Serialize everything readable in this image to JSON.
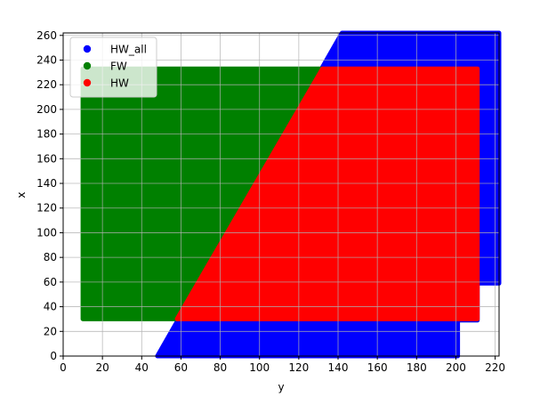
{
  "chart_data": {
    "type": "scatter",
    "title": "",
    "xlabel": "y",
    "ylabel": "x",
    "xlim": [
      0,
      222
    ],
    "ylim": [
      0,
      262
    ],
    "x_ticks": [
      0,
      20,
      40,
      60,
      80,
      100,
      120,
      140,
      160,
      180,
      200,
      220
    ],
    "y_ticks": [
      0,
      20,
      40,
      60,
      80,
      100,
      120,
      140,
      160,
      180,
      200,
      220,
      240,
      260
    ],
    "grid": true,
    "legend_position": "top-left",
    "series": [
      {
        "name": "HW_all",
        "color": "#0000ff",
        "region_polygon": [
          [
            48,
            0
          ],
          [
            201,
            0
          ],
          [
            201,
            29
          ],
          [
            211,
            29
          ],
          [
            211,
            59
          ],
          [
            222,
            59
          ],
          [
            222,
            262
          ],
          [
            142,
            262
          ]
        ]
      },
      {
        "name": "FW",
        "color": "#008000",
        "region_polygon": [
          [
            10,
            30
          ],
          [
            58,
            30
          ],
          [
            132,
            233
          ],
          [
            10,
            233
          ]
        ]
      },
      {
        "name": "HW",
        "color": "#ff0000",
        "region_polygon": [
          [
            58,
            30
          ],
          [
            211,
            30
          ],
          [
            211,
            233
          ],
          [
            132,
            233
          ]
        ]
      }
    ]
  }
}
